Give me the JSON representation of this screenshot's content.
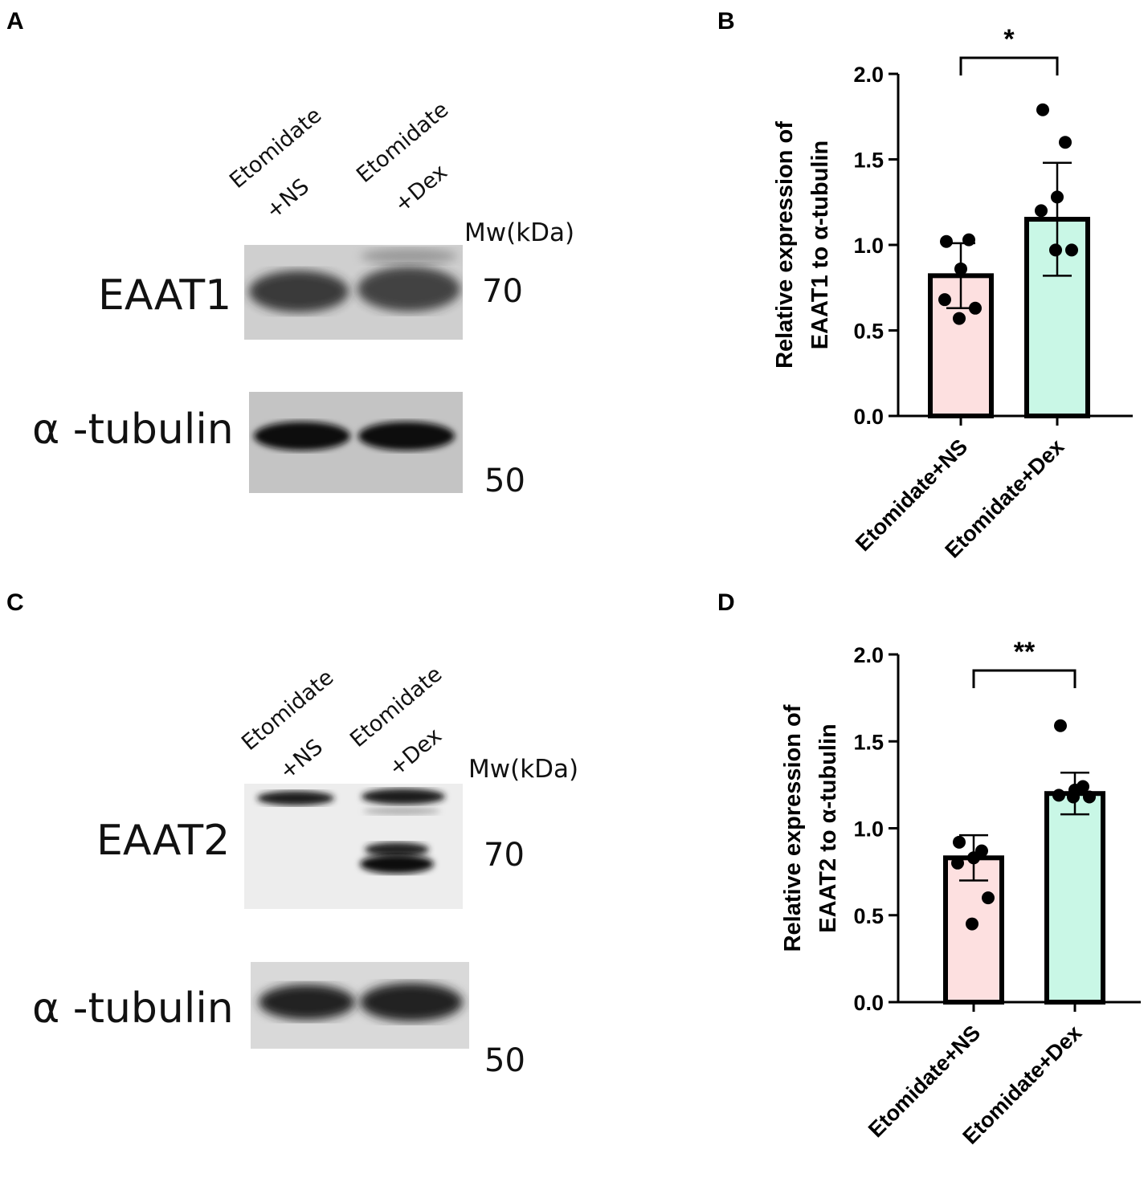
{
  "panels": {
    "a": {
      "letter": "A",
      "lane_label_1_line1": "Etomidate",
      "lane_label_1_line2": "+NS",
      "lane_label_2_line1": "Etomidate",
      "lane_label_2_line2": "+Dex",
      "mw_header": "Mw(kDa)",
      "protein_top": "EAAT1",
      "protein_bottom": "α -tubulin",
      "mw_top": "70",
      "mw_bottom": "50"
    },
    "b": {
      "letter": "B"
    },
    "c": {
      "letter": "C",
      "lane_label_1_line1": "Etomidate",
      "lane_label_1_line2": "+NS",
      "lane_label_2_line1": "Etomidate",
      "lane_label_2_line2": "+Dex",
      "mw_header": "Mw(kDa)",
      "protein_top": "EAAT2",
      "protein_bottom": "α -tubulin",
      "mw_top": "70",
      "mw_bottom": "50"
    },
    "d": {
      "letter": "D"
    }
  },
  "chart_data": [
    {
      "type": "bar",
      "panel": "B",
      "categories": [
        "Etomidate+NS",
        "Etomidate+Dex"
      ],
      "values": [
        0.82,
        1.15
      ],
      "error": [
        0.19,
        0.33
      ],
      "points": [
        [
          1.02,
          1.03,
          0.86,
          0.68,
          0.63,
          0.57
        ],
        [
          1.79,
          1.6,
          1.28,
          1.2,
          0.97,
          0.97
        ]
      ],
      "bar_colors": [
        "#fde0e0",
        "#c9f7e6"
      ],
      "ylabel_line1": "Relative expression of",
      "ylabel_line2": "EAAT1 to α-tubulin",
      "ylim": [
        0,
        2.0
      ],
      "yticks": [
        "0.0",
        "0.5",
        "1.0",
        "1.5",
        "2.0"
      ],
      "significance": "*"
    },
    {
      "type": "bar",
      "panel": "D",
      "categories": [
        "Etomidate+NS",
        "Etomidate+Dex"
      ],
      "values": [
        0.83,
        1.2
      ],
      "error": [
        0.13,
        0.12
      ],
      "points": [
        [
          0.92,
          0.87,
          0.83,
          0.8,
          0.6,
          0.45
        ],
        [
          1.59,
          1.24,
          1.22,
          1.19,
          1.18,
          1.18
        ]
      ],
      "bar_colors": [
        "#fde0e0",
        "#c9f7e6"
      ],
      "ylabel_line1": "Relative expression of",
      "ylabel_line2": "EAAT2 to α-tubulin",
      "ylim": [
        0,
        2.0
      ],
      "yticks": [
        "0.0",
        "0.5",
        "1.0",
        "1.5",
        "2.0"
      ],
      "significance": "**"
    }
  ]
}
